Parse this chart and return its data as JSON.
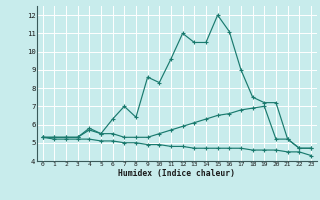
{
  "xlabel": "Humidex (Indice chaleur)",
  "bg_color": "#c8ecec",
  "grid_color": "#a8d8d8",
  "line_color": "#1a7a6e",
  "x_values": [
    0,
    1,
    2,
    3,
    4,
    5,
    6,
    7,
    8,
    9,
    10,
    11,
    12,
    13,
    14,
    15,
    16,
    17,
    18,
    19,
    20,
    21,
    22,
    23
  ],
  "line1": [
    5.3,
    5.3,
    5.3,
    5.3,
    5.7,
    5.5,
    6.3,
    7.0,
    6.4,
    8.6,
    8.3,
    9.6,
    11.0,
    10.5,
    10.5,
    12.0,
    11.1,
    9.0,
    7.5,
    7.2,
    7.2,
    5.2,
    4.7,
    4.7
  ],
  "line2": [
    5.3,
    5.3,
    5.3,
    5.3,
    5.8,
    5.5,
    5.5,
    5.3,
    5.3,
    5.3,
    5.5,
    5.7,
    5.9,
    6.1,
    6.3,
    6.5,
    6.6,
    6.8,
    6.9,
    7.0,
    5.2,
    5.2,
    4.7,
    4.7
  ],
  "line3": [
    5.3,
    5.2,
    5.2,
    5.2,
    5.2,
    5.1,
    5.1,
    5.0,
    5.0,
    4.9,
    4.9,
    4.8,
    4.8,
    4.7,
    4.7,
    4.7,
    4.7,
    4.7,
    4.6,
    4.6,
    4.6,
    4.5,
    4.5,
    4.3
  ],
  "xlim": [
    -0.5,
    23.5
  ],
  "ylim": [
    4,
    12.5
  ],
  "yticks": [
    4,
    5,
    6,
    7,
    8,
    9,
    10,
    11,
    12
  ],
  "xticks": [
    0,
    1,
    2,
    3,
    4,
    5,
    6,
    7,
    8,
    9,
    10,
    11,
    12,
    13,
    14,
    15,
    16,
    17,
    18,
    19,
    20,
    21,
    22,
    23
  ],
  "figsize": [
    3.2,
    2.0
  ],
  "dpi": 100
}
